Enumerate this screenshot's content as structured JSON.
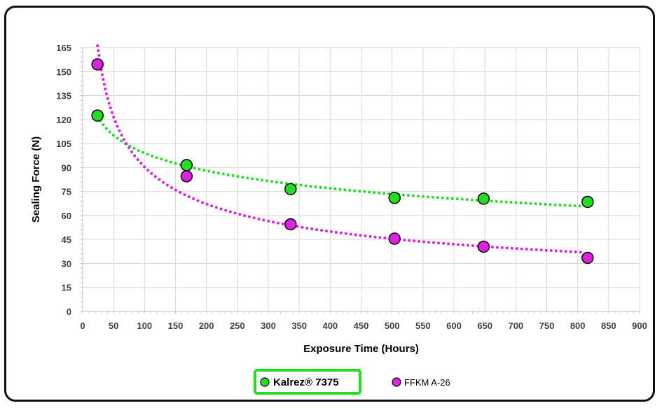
{
  "chart_data": {
    "type": "scatter",
    "xlabel": "Exposure Time (Hours)",
    "ylabel": "Sealing Force (N)",
    "xlim": [
      0,
      900
    ],
    "ylim": [
      0,
      165
    ],
    "xticks": [
      0,
      50,
      100,
      150,
      200,
      250,
      300,
      350,
      400,
      450,
      500,
      550,
      600,
      650,
      700,
      750,
      800,
      850,
      900
    ],
    "yticks": [
      0,
      15,
      30,
      45,
      60,
      75,
      90,
      105,
      120,
      135,
      150,
      165
    ],
    "grid": true,
    "legend_position": "bottom",
    "series": [
      {
        "name": "Kalrez® 7375",
        "color": "#22dd22",
        "trendline": "logarithmic",
        "legend_highlighted": true,
        "x": [
          24,
          168,
          336,
          504,
          648,
          816
        ],
        "y": [
          122.5,
          91.5,
          76.5,
          71,
          70.5,
          68.5
        ]
      },
      {
        "name": "FFKM A-26",
        "color": "#e020e0",
        "trendline": "power",
        "legend_highlighted": false,
        "x": [
          24,
          168,
          336,
          504,
          648,
          816
        ],
        "y": [
          154.5,
          84.5,
          54.5,
          45.5,
          40.5,
          33.5
        ]
      }
    ]
  }
}
